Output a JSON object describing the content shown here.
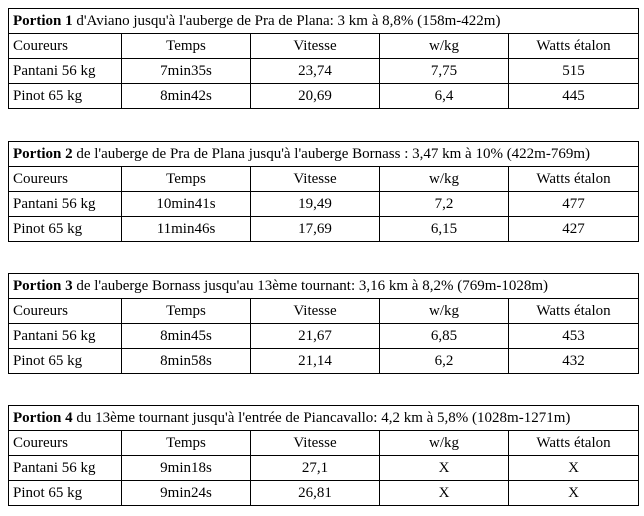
{
  "portions": [
    {
      "label": "Portion 1",
      "description": " d'Aviano jusqu'à l'auberge de Pra de Plana: 3 km à 8,8% (158m-422m)",
      "headers": [
        "Coureurs",
        "Temps",
        "Vitesse",
        "w/kg",
        "Watts étalon"
      ],
      "rows": [
        [
          "Pantani 56 kg",
          "7min35s",
          "23,74",
          "7,75",
          "515"
        ],
        [
          "Pinot 65 kg",
          "8min42s",
          "20,69",
          "6,4",
          "445"
        ]
      ]
    },
    {
      "label": "Portion 2",
      "description": " de l'auberge de Pra de Plana jusqu'à l'auberge Bornass : 3,47 km à 10% (422m-769m)",
      "headers": [
        "Coureurs",
        "Temps",
        "Vitesse",
        "w/kg",
        "Watts étalon"
      ],
      "rows": [
        [
          "Pantani 56 kg",
          "10min41s",
          "19,49",
          "7,2",
          "477"
        ],
        [
          "Pinot 65 kg",
          "11min46s",
          "17,69",
          "6,15",
          "427"
        ]
      ]
    },
    {
      "label": "Portion 3",
      "description": " de l'auberge Bornass jusqu'au 13ème tournant: 3,16 km à 8,2% (769m-1028m)",
      "headers": [
        "Coureurs",
        "Temps",
        "Vitesse",
        "w/kg",
        "Watts étalon"
      ],
      "rows": [
        [
          "Pantani 56 kg",
          "8min45s",
          "21,67",
          "6,85",
          "453"
        ],
        [
          "Pinot 65 kg",
          "8min58s",
          "21,14",
          "6,2",
          "432"
        ]
      ]
    },
    {
      "label": "Portion 4",
      "description": " du 13ème tournant jusqu'à l'entrée de Piancavallo: 4,2 km à 5,8% (1028m-1271m)",
      "headers": [
        "Coureurs",
        "Temps",
        "Vitesse",
        "w/kg",
        "Watts étalon"
      ],
      "rows": [
        [
          "Pantani 56 kg",
          "9min18s",
          "27,1",
          "X",
          "X"
        ],
        [
          "Pinot 65 kg",
          "9min24s",
          "26,81",
          "X",
          "X"
        ]
      ]
    }
  ]
}
